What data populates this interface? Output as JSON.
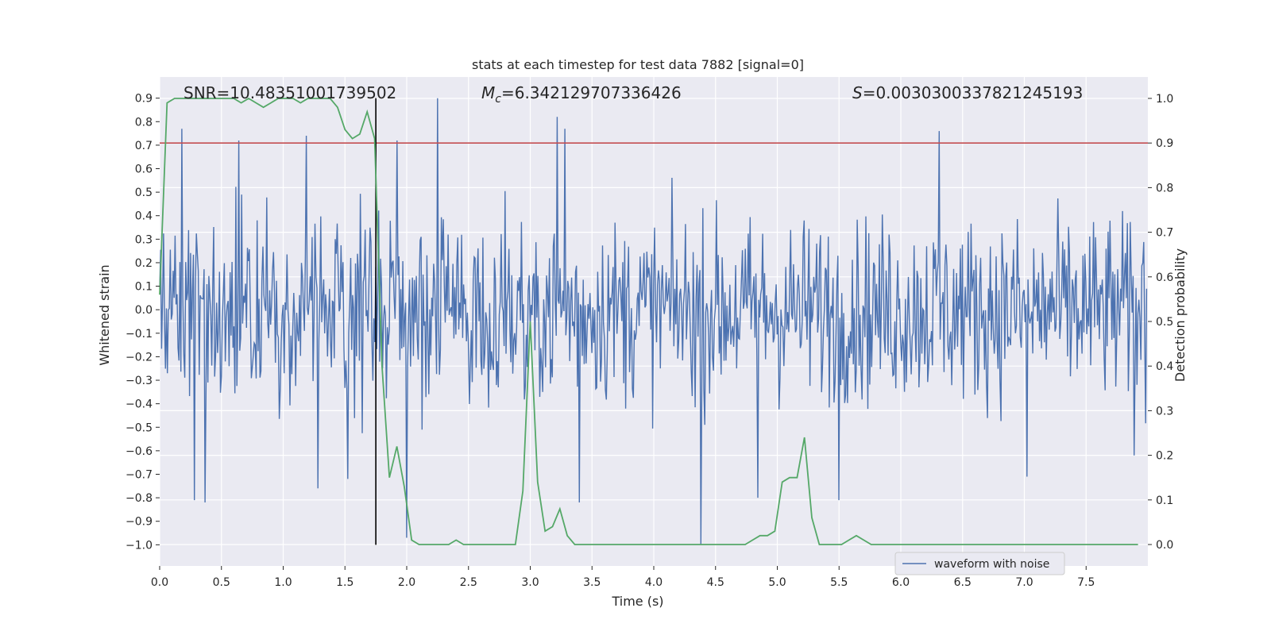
{
  "chart_data": {
    "type": "line",
    "title": "stats at each timestep for test data 7882 [signal=0]",
    "xlabel": "Time (s)",
    "ylabel": "Whitened strain",
    "y2label": "Detection probability",
    "xlim": [
      0.0,
      8.0
    ],
    "ylim": [
      -1.09,
      0.99
    ],
    "y2lim": [
      -0.048,
      1.048
    ],
    "xticks": [
      "0.0",
      "0.5",
      "1.0",
      "1.5",
      "2.0",
      "2.5",
      "3.0",
      "3.5",
      "4.0",
      "4.5",
      "5.0",
      "5.5",
      "6.0",
      "6.5",
      "7.0",
      "7.5"
    ],
    "yticks": [
      "0.9",
      "0.8",
      "0.7",
      "0.6",
      "0.5",
      "0.4",
      "0.3",
      "0.2",
      "0.1",
      "0.0",
      "-0.1",
      "-0.2",
      "-0.3",
      "-0.4",
      "-0.5",
      "-0.6",
      "-0.7",
      "-0.8",
      "-0.9",
      "-1.0"
    ],
    "y2ticks": [
      "1.0",
      "0.9",
      "0.8",
      "0.7",
      "0.6",
      "0.5",
      "0.4",
      "0.3",
      "0.2",
      "0.1",
      "0.0"
    ],
    "annotations": {
      "snr": "SNR=10.48351001739502",
      "mc_label": "M",
      "mc_sub": "c",
      "mc_value": "=6.342129707336426",
      "s_label": "S",
      "s_value": "=0.0030300337821245193"
    },
    "threshold": {
      "value": 0.9,
      "axis": "y2",
      "color": "#c44e52"
    },
    "event_marker": {
      "time": 1.75,
      "ymin": -1.0,
      "ymax": 0.9,
      "color": "#000000"
    },
    "legend": {
      "label": "waveform with noise",
      "placement": "lower-right"
    },
    "series": [
      {
        "name": "waveform with noise",
        "axis": "y",
        "color": "#4c72b0",
        "sample_count": 1024,
        "x_range": [
          0.0,
          7.99
        ],
        "typical_amplitude": 0.32,
        "peaks": [
          {
            "x": 0.18,
            "y": 0.77
          },
          {
            "x": 0.28,
            "y": -0.81
          },
          {
            "x": 0.37,
            "y": -0.82
          },
          {
            "x": 0.64,
            "y": 0.72
          },
          {
            "x": 1.19,
            "y": 0.74
          },
          {
            "x": 1.28,
            "y": -0.76
          },
          {
            "x": 1.52,
            "y": -0.72
          },
          {
            "x": 1.92,
            "y": 0.72
          },
          {
            "x": 2.0,
            "y": -0.97
          },
          {
            "x": 2.25,
            "y": 0.9
          },
          {
            "x": 3.22,
            "y": 0.82
          },
          {
            "x": 3.28,
            "y": 0.77
          },
          {
            "x": 3.4,
            "y": -0.82
          },
          {
            "x": 4.38,
            "y": -1.0
          },
          {
            "x": 4.84,
            "y": -0.8
          },
          {
            "x": 5.5,
            "y": -0.81
          },
          {
            "x": 6.31,
            "y": 0.76
          },
          {
            "x": 7.02,
            "y": -0.71
          },
          {
            "x": 7.89,
            "y": -0.62
          }
        ]
      },
      {
        "name": "detection probability",
        "axis": "y2",
        "color": "#55a868",
        "x": [
          0.0,
          0.06,
          0.12,
          0.18,
          0.24,
          0.3,
          0.36,
          0.42,
          0.48,
          0.54,
          0.6,
          0.66,
          0.72,
          0.78,
          0.84,
          0.9,
          0.96,
          1.02,
          1.08,
          1.14,
          1.2,
          1.26,
          1.32,
          1.38,
          1.44,
          1.5,
          1.56,
          1.62,
          1.68,
          1.74,
          1.8,
          1.86,
          1.92,
          1.98,
          2.04,
          2.1,
          2.16,
          2.22,
          2.28,
          2.34,
          2.4,
          2.46,
          2.52,
          2.58,
          2.64,
          2.7,
          2.76,
          2.82,
          2.88,
          2.94,
          3.0,
          3.06,
          3.12,
          3.18,
          3.24,
          3.3,
          3.36,
          3.42,
          3.48,
          3.54,
          3.6,
          3.66,
          3.72,
          3.78,
          3.84,
          3.9,
          3.96,
          4.02,
          4.08,
          4.14,
          4.2,
          4.26,
          4.32,
          4.38,
          4.44,
          4.5,
          4.56,
          4.62,
          4.68,
          4.74,
          4.8,
          4.86,
          4.92,
          4.98,
          5.04,
          5.1,
          5.16,
          5.22,
          5.28,
          5.34,
          5.4,
          5.46,
          5.52,
          5.58,
          5.64,
          5.7,
          5.76,
          5.82,
          5.88,
          5.94,
          6.0,
          6.06,
          6.12,
          6.18,
          6.24,
          6.3,
          6.36,
          6.42,
          6.48,
          6.54,
          6.6,
          6.66,
          6.72,
          6.78,
          6.84,
          6.9,
          6.96,
          7.02,
          7.08,
          7.14,
          7.2,
          7.26,
          7.32,
          7.38,
          7.44,
          7.5,
          7.56,
          7.62,
          7.68,
          7.74,
          7.8,
          7.86,
          7.92
        ],
        "values": [
          0.56,
          0.99,
          1.0,
          1.0,
          1.0,
          1.0,
          1.0,
          1.0,
          1.0,
          1.0,
          1.0,
          0.99,
          1.0,
          0.99,
          0.98,
          0.99,
          1.0,
          1.0,
          1.0,
          0.99,
          1.0,
          1.0,
          1.0,
          1.0,
          0.98,
          0.93,
          0.91,
          0.92,
          0.97,
          0.91,
          0.4,
          0.15,
          0.22,
          0.13,
          0.01,
          0.0,
          0.0,
          0.0,
          0.0,
          0.0,
          0.01,
          0.0,
          0.0,
          0.0,
          0.0,
          0.0,
          0.0,
          0.0,
          0.0,
          0.12,
          0.5,
          0.14,
          0.03,
          0.04,
          0.08,
          0.02,
          0.0,
          0.0,
          0.0,
          0.0,
          0.0,
          0.0,
          0.0,
          0.0,
          0.0,
          0.0,
          0.0,
          0.0,
          0.0,
          0.0,
          0.0,
          0.0,
          0.0,
          0.0,
          0.0,
          0.0,
          0.0,
          0.0,
          0.0,
          0.0,
          0.01,
          0.02,
          0.02,
          0.03,
          0.14,
          0.15,
          0.15,
          0.24,
          0.06,
          0.0,
          0.0,
          0.0,
          0.0,
          0.01,
          0.02,
          0.01,
          0.0,
          0.0,
          0.0,
          0.0,
          0.0,
          0.0,
          0.0,
          0.0,
          0.0,
          0.0,
          0.0,
          0.0,
          0.0,
          0.0,
          0.0,
          0.0,
          0.0,
          0.0,
          0.0,
          0.0,
          0.0,
          0.0,
          0.0,
          0.0,
          0.0,
          0.0,
          0.0,
          0.0,
          0.0,
          0.0,
          0.0,
          0.0,
          0.0,
          0.0,
          0.0,
          0.0,
          0.0
        ]
      }
    ]
  }
}
